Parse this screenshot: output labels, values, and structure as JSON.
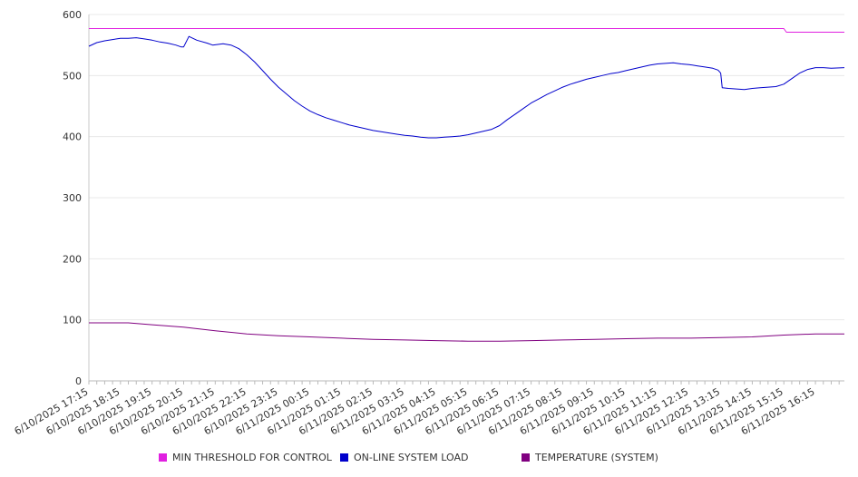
{
  "chart_data": {
    "type": "line",
    "title": "",
    "xlabel": "",
    "ylabel": "",
    "ylim": [
      0,
      600
    ],
    "yticks": [
      0,
      100,
      200,
      300,
      400,
      500,
      600
    ],
    "grid": true,
    "legend_position": "bottom",
    "x_tick_labels": [
      "6/10/2025 17:15",
      "6/10/2025 18:15",
      "6/10/2025 19:15",
      "6/10/2025 20:15",
      "6/10/2025 21:15",
      "6/10/2025 22:15",
      "6/10/2025 23:15",
      "6/11/2025 00:15",
      "6/11/2025 01:15",
      "6/11/2025 02:15",
      "6/11/2025 03:15",
      "6/11/2025 04:15",
      "6/11/2025 05:15",
      "6/11/2025 06:15",
      "6/11/2025 07:15",
      "6/11/2025 08:15",
      "6/11/2025 09:15",
      "6/11/2025 10:15",
      "6/11/2025 11:15",
      "6/11/2025 12:15",
      "6/11/2025 13:15",
      "6/11/2025 14:15",
      "6/11/2025 15:15",
      "6/11/2025 16:15"
    ],
    "series": [
      {
        "name": "MIN THRESHOLD FOR CONTROL",
        "color": "#e020e0",
        "points": [
          [
            "6/10/2025 17:15",
            577
          ],
          [
            "6/11/2025 15:15",
            577
          ],
          [
            "6/11/2025 15:20",
            571
          ],
          [
            "6/11/2025 17:10",
            571
          ]
        ]
      },
      {
        "name": "ON-LINE SYSTEM LOAD",
        "color": "#0000cc",
        "points": [
          [
            "6/10/2025 17:15",
            548
          ],
          [
            "6/10/2025 17:30",
            554
          ],
          [
            "6/10/2025 17:45",
            557
          ],
          [
            "6/10/2025 18:00",
            559
          ],
          [
            "6/10/2025 18:15",
            561
          ],
          [
            "6/10/2025 18:30",
            561
          ],
          [
            "6/10/2025 18:45",
            562
          ],
          [
            "6/10/2025 19:00",
            560
          ],
          [
            "6/10/2025 19:15",
            558
          ],
          [
            "6/10/2025 19:30",
            555
          ],
          [
            "6/10/2025 19:45",
            553
          ],
          [
            "6/10/2025 20:00",
            550
          ],
          [
            "6/10/2025 20:10",
            547
          ],
          [
            "6/10/2025 20:15",
            547
          ],
          [
            "6/10/2025 20:25",
            564
          ],
          [
            "6/10/2025 20:40",
            558
          ],
          [
            "6/10/2025 21:00",
            553
          ],
          [
            "6/10/2025 21:10",
            550
          ],
          [
            "6/10/2025 21:20",
            551
          ],
          [
            "6/10/2025 21:30",
            552
          ],
          [
            "6/10/2025 21:45",
            550
          ],
          [
            "6/10/2025 22:00",
            544
          ],
          [
            "6/10/2025 22:15",
            534
          ],
          [
            "6/10/2025 22:30",
            522
          ],
          [
            "6/10/2025 22:45",
            508
          ],
          [
            "6/10/2025 23:00",
            494
          ],
          [
            "6/10/2025 23:15",
            481
          ],
          [
            "6/10/2025 23:30",
            470
          ],
          [
            "6/10/2025 23:45",
            459
          ],
          [
            "6/11/2025 00:00",
            450
          ],
          [
            "6/11/2025 00:15",
            442
          ],
          [
            "6/11/2025 00:30",
            436
          ],
          [
            "6/11/2025 00:45",
            431
          ],
          [
            "6/11/2025 01:00",
            427
          ],
          [
            "6/11/2025 01:15",
            423
          ],
          [
            "6/11/2025 01:30",
            419
          ],
          [
            "6/11/2025 01:45",
            416
          ],
          [
            "6/11/2025 02:00",
            413
          ],
          [
            "6/11/2025 02:15",
            410
          ],
          [
            "6/11/2025 02:30",
            408
          ],
          [
            "6/11/2025 02:45",
            406
          ],
          [
            "6/11/2025 03:00",
            404
          ],
          [
            "6/11/2025 03:15",
            402
          ],
          [
            "6/11/2025 03:30",
            401
          ],
          [
            "6/11/2025 03:45",
            399
          ],
          [
            "6/11/2025 04:00",
            398
          ],
          [
            "6/11/2025 04:15",
            398
          ],
          [
            "6/11/2025 04:30",
            399
          ],
          [
            "6/11/2025 04:45",
            400
          ],
          [
            "6/11/2025 05:00",
            401
          ],
          [
            "6/11/2025 05:15",
            403
          ],
          [
            "6/11/2025 05:30",
            406
          ],
          [
            "6/11/2025 05:45",
            409
          ],
          [
            "6/11/2025 06:00",
            412
          ],
          [
            "6/11/2025 06:15",
            418
          ],
          [
            "6/11/2025 06:30",
            428
          ],
          [
            "6/11/2025 06:45",
            437
          ],
          [
            "6/11/2025 07:00",
            446
          ],
          [
            "6/11/2025 07:15",
            455
          ],
          [
            "6/11/2025 07:30",
            462
          ],
          [
            "6/11/2025 07:45",
            469
          ],
          [
            "6/11/2025 08:00",
            475
          ],
          [
            "6/11/2025 08:15",
            481
          ],
          [
            "6/11/2025 08:30",
            486
          ],
          [
            "6/11/2025 08:45",
            490
          ],
          [
            "6/11/2025 09:00",
            494
          ],
          [
            "6/11/2025 09:15",
            497
          ],
          [
            "6/11/2025 09:30",
            500
          ],
          [
            "6/11/2025 09:45",
            503
          ],
          [
            "6/11/2025 10:00",
            505
          ],
          [
            "6/11/2025 10:15",
            508
          ],
          [
            "6/11/2025 10:30",
            511
          ],
          [
            "6/11/2025 10:45",
            514
          ],
          [
            "6/11/2025 11:00",
            517
          ],
          [
            "6/11/2025 11:15",
            519
          ],
          [
            "6/11/2025 11:30",
            520
          ],
          [
            "6/11/2025 11:45",
            521
          ],
          [
            "6/11/2025 12:00",
            519
          ],
          [
            "6/11/2025 12:15",
            518
          ],
          [
            "6/11/2025 12:30",
            516
          ],
          [
            "6/11/2025 12:45",
            514
          ],
          [
            "6/11/2025 13:00",
            512
          ],
          [
            "6/11/2025 13:10",
            509
          ],
          [
            "6/11/2025 13:15",
            504
          ],
          [
            "6/11/2025 13:18",
            480
          ],
          [
            "6/11/2025 13:30",
            479
          ],
          [
            "6/11/2025 13:45",
            478
          ],
          [
            "6/11/2025 14:00",
            477
          ],
          [
            "6/11/2025 14:15",
            479
          ],
          [
            "6/11/2025 14:30",
            480
          ],
          [
            "6/11/2025 14:45",
            481
          ],
          [
            "6/11/2025 15:00",
            482
          ],
          [
            "6/11/2025 15:15",
            486
          ],
          [
            "6/11/2025 15:30",
            495
          ],
          [
            "6/11/2025 15:45",
            504
          ],
          [
            "6/11/2025 16:00",
            510
          ],
          [
            "6/11/2025 16:15",
            513
          ],
          [
            "6/11/2025 16:30",
            513
          ],
          [
            "6/11/2025 16:45",
            512
          ],
          [
            "6/11/2025 17:10",
            513
          ]
        ]
      },
      {
        "name": "TEMPERATURE (SYSTEM)",
        "color": "#800080",
        "points": [
          [
            "6/10/2025 17:15",
            95
          ],
          [
            "6/10/2025 18:30",
            95
          ],
          [
            "6/10/2025 19:15",
            92
          ],
          [
            "6/10/2025 20:15",
            88
          ],
          [
            "6/10/2025 21:15",
            82
          ],
          [
            "6/10/2025 22:15",
            77
          ],
          [
            "6/10/2025 23:15",
            74
          ],
          [
            "6/11/2025 00:15",
            72
          ],
          [
            "6/11/2025 01:15",
            70
          ],
          [
            "6/11/2025 02:15",
            68
          ],
          [
            "6/11/2025 03:15",
            67
          ],
          [
            "6/11/2025 04:15",
            66
          ],
          [
            "6/11/2025 05:15",
            65
          ],
          [
            "6/11/2025 06:15",
            65
          ],
          [
            "6/11/2025 07:15",
            66
          ],
          [
            "6/11/2025 08:15",
            67
          ],
          [
            "6/11/2025 09:15",
            68
          ],
          [
            "6/11/2025 10:15",
            69
          ],
          [
            "6/11/2025 11:15",
            70
          ],
          [
            "6/11/2025 12:15",
            70
          ],
          [
            "6/11/2025 13:15",
            71
          ],
          [
            "6/11/2025 14:15",
            72
          ],
          [
            "6/11/2025 15:15",
            75
          ],
          [
            "6/11/2025 16:15",
            77
          ],
          [
            "6/11/2025 17:10",
            77
          ]
        ]
      }
    ]
  }
}
